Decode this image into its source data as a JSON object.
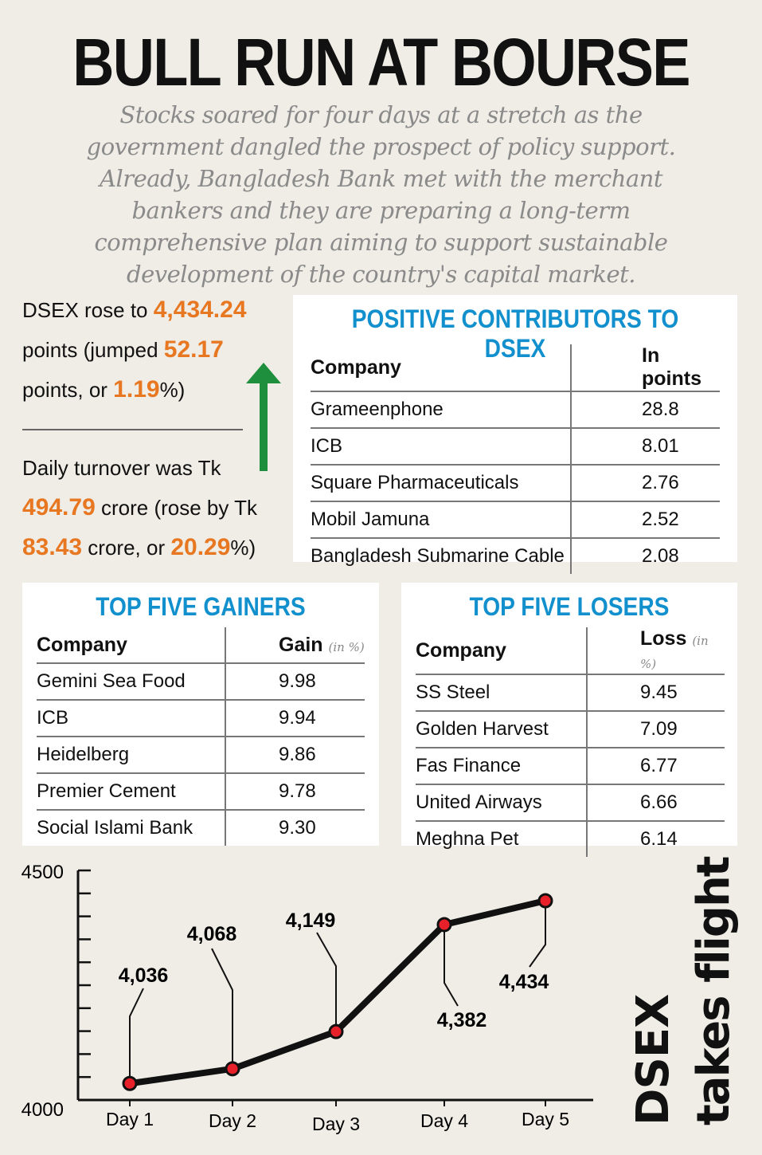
{
  "title": "BULL RUN AT BOURSE",
  "intro": "Stocks soared for four days at a stretch as the government dangled the prospect of policy support. Already, Bangladesh Bank met with the merchant bankers and they are preparing a long-term comprehensive plan aiming to support sustainable development of the country's capital market.",
  "dsex_stat": {
    "t1": "DSEX rose to ",
    "v1": "4,434.24",
    "t2": "points (jumped ",
    "v2": "52.17",
    "t3": "points, or ",
    "v3": "1.19",
    "t4": "%)"
  },
  "turnover_stat": {
    "t1": "Daily turnover was Tk",
    "v1": "494.79",
    "t2": " crore (rose by Tk",
    "v2": "83.43",
    "t3": " crore, or ",
    "v3": "20.29",
    "t4": "%)"
  },
  "colors": {
    "accent_orange": "#e87722",
    "accent_blue": "#1190cd",
    "arrow_green": "#1e8f3c",
    "marker_red": "#e8202a"
  },
  "contributors": {
    "title": "POSITIVE CONTRIBUTORS TO DSEX",
    "headers": [
      "Company",
      "In points"
    ],
    "rows": [
      [
        "Grameenphone",
        "28.8"
      ],
      [
        "ICB",
        "8.01"
      ],
      [
        "Square Pharmaceuticals",
        "2.76"
      ],
      [
        "Mobil Jamuna",
        "2.52"
      ],
      [
        "Bangladesh Submarine Cable",
        "2.08"
      ]
    ]
  },
  "gainers": {
    "title": "TOP FIVE GAINERS",
    "headers": [
      "Company",
      "Gain"
    ],
    "unit": "(in %)",
    "rows": [
      [
        "Gemini Sea Food",
        "9.98"
      ],
      [
        "ICB",
        "9.94"
      ],
      [
        "Heidelberg",
        "9.86"
      ],
      [
        "Premier Cement",
        "9.78"
      ],
      [
        "Social Islami Bank",
        "9.30"
      ]
    ]
  },
  "losers": {
    "title": "TOP FIVE LOSERS",
    "headers": [
      "Company",
      "Loss"
    ],
    "unit": "(in %)",
    "rows": [
      [
        "SS Steel",
        "9.45"
      ],
      [
        "Golden Harvest",
        "7.09"
      ],
      [
        "Fas Finance",
        "6.77"
      ],
      [
        "United Airways",
        "6.66"
      ],
      [
        "Meghna Pet",
        "6.14"
      ]
    ]
  },
  "chart_data": {
    "type": "line",
    "title": "DSEX takes flight",
    "title_line1": "DSEX",
    "title_line2": "takes flight",
    "categories": [
      "Day 1",
      "Day 2",
      "Day 3",
      "Day 4",
      "Day 5"
    ],
    "values": [
      4036,
      4068,
      4149,
      4382,
      4434
    ],
    "labels": [
      "4,036",
      "4,068",
      "4,149",
      "4,382",
      "4,434"
    ],
    "ylim": [
      4000,
      4500
    ],
    "ytick_labels": [
      "4500",
      "4000"
    ],
    "grid": false
  }
}
